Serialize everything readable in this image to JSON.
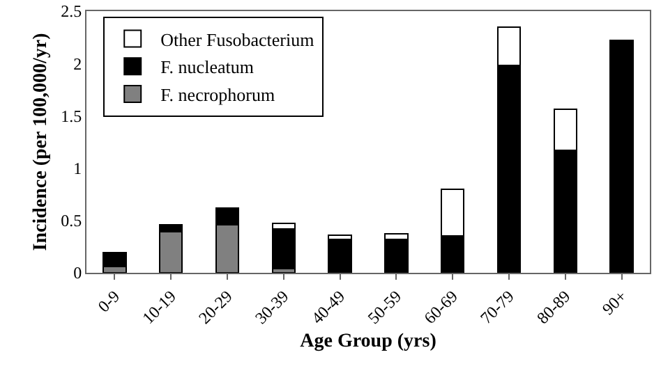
{
  "chart_data": {
    "type": "bar",
    "stacked": true,
    "xlabel": "Age Group (yrs)",
    "ylabel": "Incidence (per 100,000/yr)",
    "categories": [
      "0-9",
      "10-19",
      "20-29",
      "30-39",
      "40-49",
      "50-59",
      "60-69",
      "70-79",
      "80-89",
      "90+"
    ],
    "series": [
      {
        "name": "F. necrophorum",
        "color": "#808080",
        "values": [
          0.06,
          0.39,
          0.46,
          0.04,
          0,
          0,
          0,
          0,
          0,
          0
        ]
      },
      {
        "name": "F. nucleatum",
        "color": "#000000",
        "values": [
          0.13,
          0.07,
          0.16,
          0.38,
          0.32,
          0.32,
          0.35,
          1.98,
          1.17,
          2.22
        ]
      },
      {
        "name": "Other Fusobacterium",
        "color": "#ffffff",
        "values": [
          0,
          0,
          0,
          0.05,
          0.04,
          0.05,
          0.45,
          0.37,
          0.39,
          0
        ]
      }
    ],
    "ylim": [
      0,
      2.5
    ],
    "yticks": [
      0,
      0.5,
      1,
      1.5,
      2,
      2.5
    ],
    "grid": false,
    "legend": "top left"
  }
}
